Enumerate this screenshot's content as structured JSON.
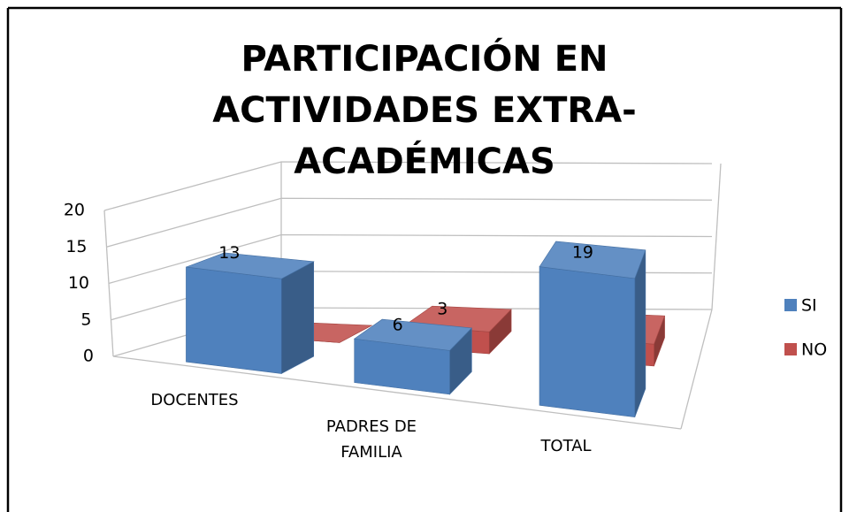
{
  "chart_data": {
    "type": "bar3d",
    "title": "PARTICIPACIÓN EN ACTIVIDADES EXTRA-ACADÉMICAS",
    "categories": [
      "DOCENTES",
      "PADRES DE FAMILIA",
      "TOTAL"
    ],
    "series": [
      {
        "name": "SI",
        "color": "#4f81bd",
        "values": [
          13,
          6,
          19
        ]
      },
      {
        "name": "NO",
        "color": "#c0504d",
        "values": [
          0,
          3,
          3
        ]
      }
    ],
    "ylim": [
      0,
      20
    ],
    "yticks": [
      0,
      5,
      10,
      15,
      20
    ],
    "grid": true,
    "legend": "right"
  }
}
